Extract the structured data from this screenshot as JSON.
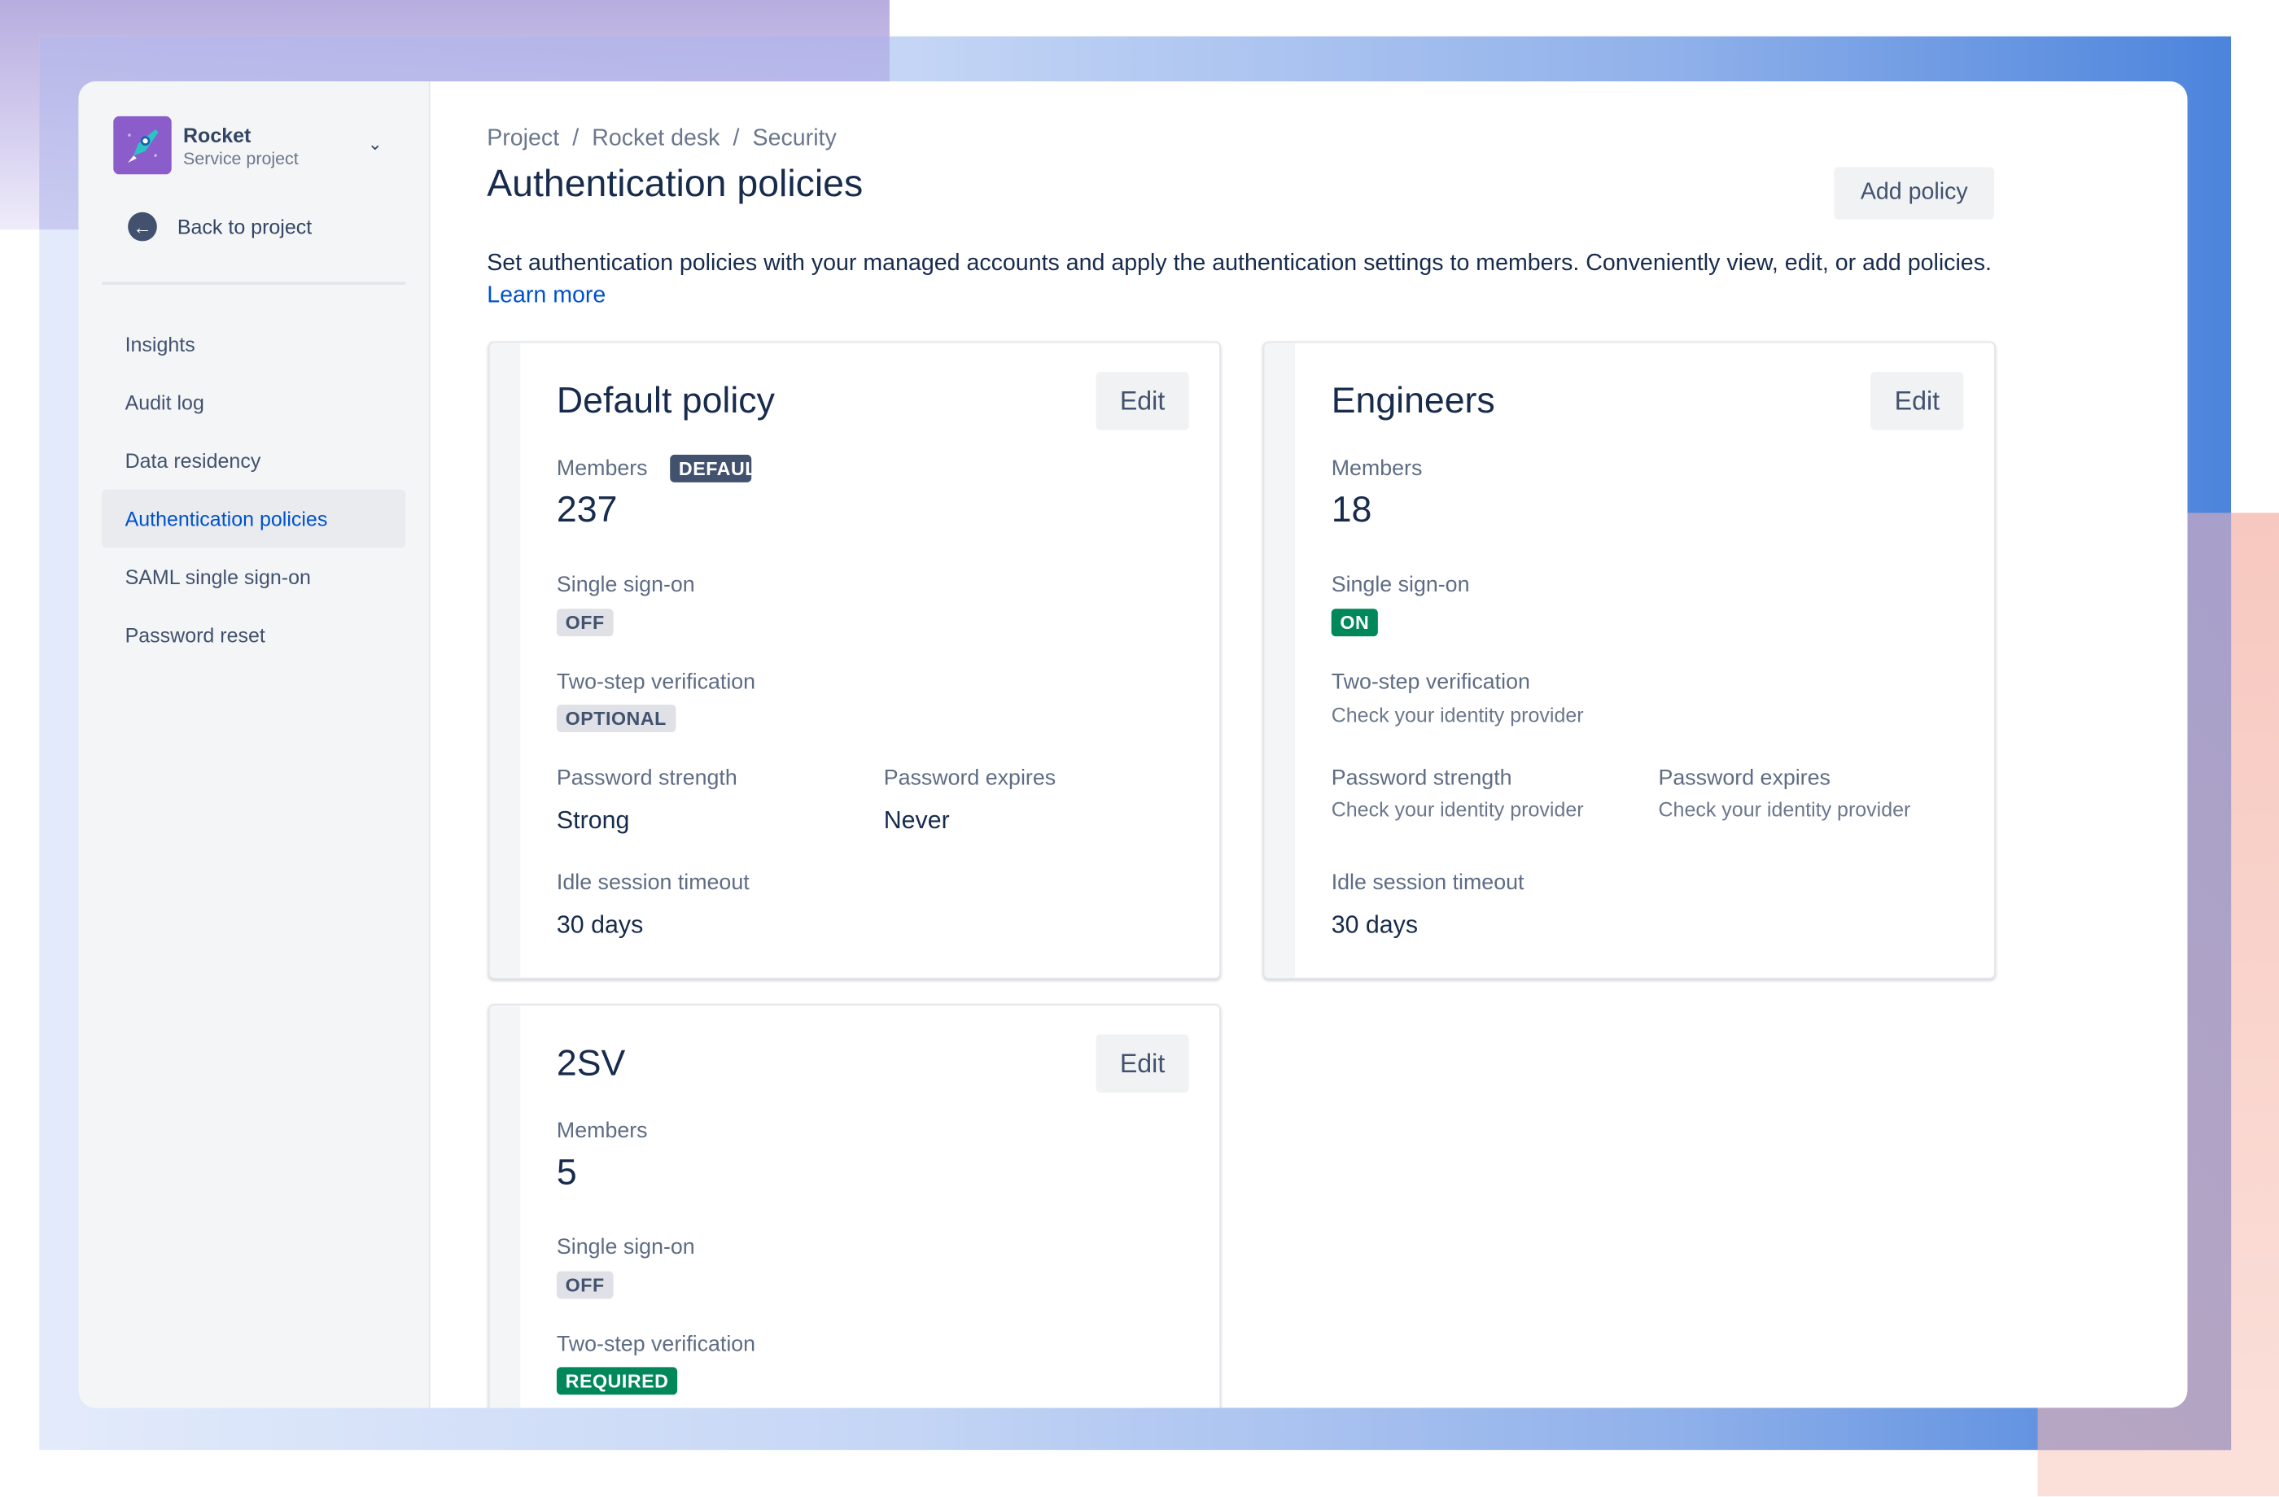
{
  "project": {
    "name": "Rocket",
    "type": "Service project",
    "back_label": "Back to project"
  },
  "sidebar": {
    "items": [
      {
        "label": "Insights",
        "active": false
      },
      {
        "label": "Audit log",
        "active": false
      },
      {
        "label": "Data residency",
        "active": false
      },
      {
        "label": "Authentication policies",
        "active": true
      },
      {
        "label": "SAML single sign-on",
        "active": false
      },
      {
        "label": "Password reset",
        "active": false
      }
    ]
  },
  "breadcrumb": [
    "Project",
    "Rocket desk",
    "Security"
  ],
  "header": {
    "title": "Authentication policies",
    "add_label": "Add policy"
  },
  "description": {
    "text": "Set authentication policies with your managed accounts and apply the authentication settings to members. Conveniently view, edit, or add policies.",
    "link": "Learn more"
  },
  "labels": {
    "edit": "Edit",
    "members": "Members",
    "sso": "Single sign-on",
    "twostep": "Two-step verification",
    "pw_strength": "Password strength",
    "pw_expires": "Password expires",
    "idle": "Idle session timeout"
  },
  "policies": [
    {
      "name": "Default policy",
      "badge": "DEFAULT",
      "members": "237",
      "sso": "OFF",
      "twostep": "OPTIONAL",
      "pw_strength": "Strong",
      "pw_expires": "Never",
      "idle": "30 days"
    },
    {
      "name": "Engineers",
      "members": "18",
      "sso": "ON",
      "twostep": "Check your identity provider",
      "pw_strength": "Check your identity provider",
      "pw_expires": "Check your identity provider",
      "idle": "30 days"
    },
    {
      "name": "2SV",
      "members": "5",
      "sso": "OFF",
      "twostep": "REQUIRED"
    }
  ],
  "colors": {
    "accent": "#0052cc",
    "success": "#00875a",
    "text": "#172b4d"
  }
}
